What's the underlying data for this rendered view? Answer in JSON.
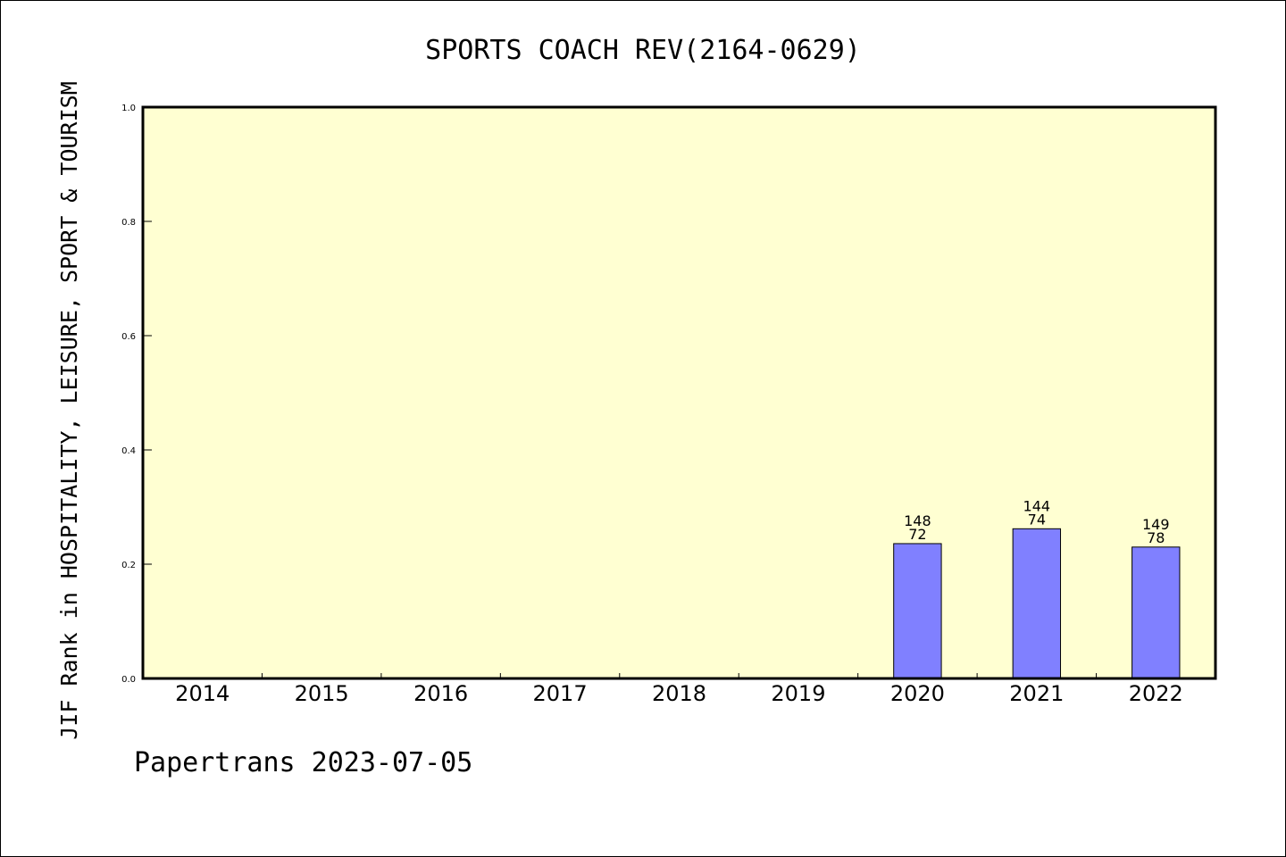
{
  "chart_data": {
    "type": "bar",
    "title": "SPORTS COACH REV(2164-0629)",
    "xlabel": "",
    "ylabel": "JIF Rank in HOSPITALITY, LEISURE, SPORT & TOURISM",
    "ylim": [
      0,
      1.0
    ],
    "yticks": [
      "0.0",
      "0.2",
      "0.4",
      "0.6",
      "0.8",
      "1.0"
    ],
    "grid": false,
    "categories": [
      "2014",
      "2015",
      "2016",
      "2017",
      "2018",
      "2019",
      "2020",
      "2021",
      "2022"
    ],
    "values": [
      null,
      null,
      null,
      null,
      null,
      null,
      0.236,
      0.262,
      0.23
    ],
    "bar_labels": [
      null,
      null,
      null,
      null,
      null,
      null,
      {
        "total": "148",
        "rank": "72"
      },
      {
        "total": "144",
        "rank": "74"
      },
      {
        "total": "149",
        "rank": "78"
      }
    ],
    "colors": {
      "plot_background": "#ffffd2",
      "bar_fill": "#8080ff",
      "bar_edge": "#000000"
    }
  },
  "footer": "Papertrans 2023-07-05"
}
